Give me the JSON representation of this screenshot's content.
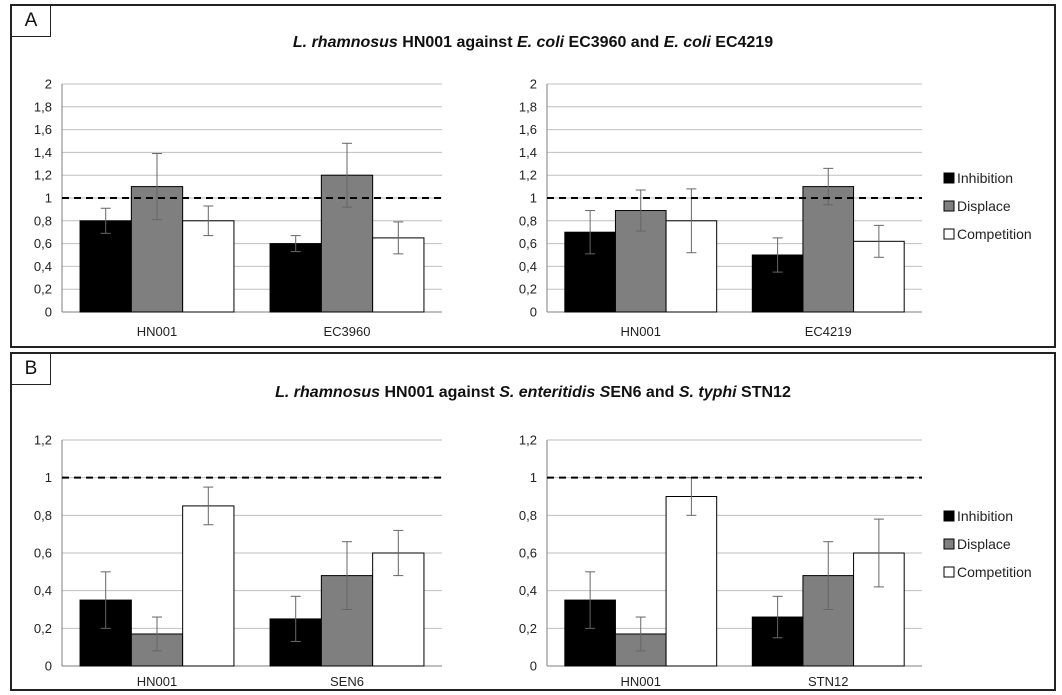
{
  "panels": [
    {
      "letter": "A",
      "title_parts": [
        {
          "text": "L. rhamnosus",
          "italic": true
        },
        {
          "text": " HN001 against ",
          "italic": false
        },
        {
          "text": "E. coli",
          "italic": true
        },
        {
          "text": " EC3960 and ",
          "italic": false
        },
        {
          "text": "E. coli",
          "italic": true
        },
        {
          "text": " EC4219",
          "italic": false
        }
      ]
    },
    {
      "letter": "B",
      "title_parts": [
        {
          "text": "L. rhamnosus",
          "italic": true
        },
        {
          "text": " HN001 against ",
          "italic": false
        },
        {
          "text": "S. enteritidis S",
          "italic": true
        },
        {
          "text": "EN6 and ",
          "italic": false
        },
        {
          "text": "S. typhi",
          "italic": true
        },
        {
          "text": " STN12",
          "italic": false
        }
      ]
    }
  ],
  "legend": [
    {
      "label": "Inhibition",
      "color": "#000000"
    },
    {
      "label": "Displace",
      "color": "#7f7f7f"
    },
    {
      "label": "Competition",
      "color": "#ffffff"
    }
  ],
  "colors": {
    "inhibition": "#000000",
    "displace": "#7f7f7f",
    "competition": "#ffffff",
    "grid": "#bfbfbf",
    "axis": "#7f7f7f"
  },
  "chart_data": [
    {
      "type": "bar",
      "panel": "A",
      "categories": [
        "HN001",
        "EC3960"
      ],
      "ylim": [
        0,
        2
      ],
      "yticks": [
        "0",
        "0,2",
        "0,4",
        "0,6",
        "0,8",
        "1",
        "1,2",
        "1,4",
        "1,6",
        "1,8",
        "2"
      ],
      "reference_line": 1,
      "series": [
        {
          "name": "Inhibition",
          "values": [
            0.8,
            0.6
          ],
          "errors": [
            0.11,
            0.07
          ]
        },
        {
          "name": "Displace",
          "values": [
            1.1,
            1.2
          ],
          "errors": [
            0.29,
            0.28
          ]
        },
        {
          "name": "Competition",
          "values": [
            0.8,
            0.65
          ],
          "errors": [
            0.13,
            0.14
          ]
        }
      ]
    },
    {
      "type": "bar",
      "panel": "A",
      "categories": [
        "HN001",
        "EC4219"
      ],
      "ylim": [
        0,
        2
      ],
      "yticks": [
        "0",
        "0,2",
        "0,4",
        "0,6",
        "0,8",
        "1",
        "1,2",
        "1,4",
        "1,6",
        "1,8",
        "2"
      ],
      "reference_line": 1,
      "series": [
        {
          "name": "Inhibition",
          "values": [
            0.7,
            0.5
          ],
          "errors": [
            0.19,
            0.15
          ]
        },
        {
          "name": "Displace",
          "values": [
            0.89,
            1.1
          ],
          "errors": [
            0.18,
            0.16
          ]
        },
        {
          "name": "Competition",
          "values": [
            0.8,
            0.62
          ],
          "errors": [
            0.28,
            0.14
          ]
        }
      ]
    },
    {
      "type": "bar",
      "panel": "B",
      "categories": [
        "HN001",
        "SEN6"
      ],
      "ylim": [
        0,
        1.2
      ],
      "yticks": [
        "0",
        "0,2",
        "0,4",
        "0,6",
        "0,8",
        "1",
        "1,2"
      ],
      "reference_line": 1,
      "series": [
        {
          "name": "Inhibition",
          "values": [
            0.35,
            0.25
          ],
          "errors": [
            0.15,
            0.12
          ]
        },
        {
          "name": "Displace",
          "values": [
            0.17,
            0.48
          ],
          "errors": [
            0.09,
            0.18
          ]
        },
        {
          "name": "Competition",
          "values": [
            0.85,
            0.6
          ],
          "errors": [
            0.1,
            0.12
          ]
        }
      ]
    },
    {
      "type": "bar",
      "panel": "B",
      "categories": [
        "HN001",
        "STN12"
      ],
      "ylim": [
        0,
        1.2
      ],
      "yticks": [
        "0",
        "0,2",
        "0,4",
        "0,6",
        "0,8",
        "1",
        "1,2"
      ],
      "reference_line": 1,
      "series": [
        {
          "name": "Inhibition",
          "values": [
            0.35,
            0.26
          ],
          "errors": [
            0.15,
            0.11
          ]
        },
        {
          "name": "Displace",
          "values": [
            0.17,
            0.48
          ],
          "errors": [
            0.09,
            0.18
          ]
        },
        {
          "name": "Competition",
          "values": [
            0.9,
            0.6
          ],
          "errors": [
            0.1,
            0.18
          ]
        }
      ]
    }
  ]
}
